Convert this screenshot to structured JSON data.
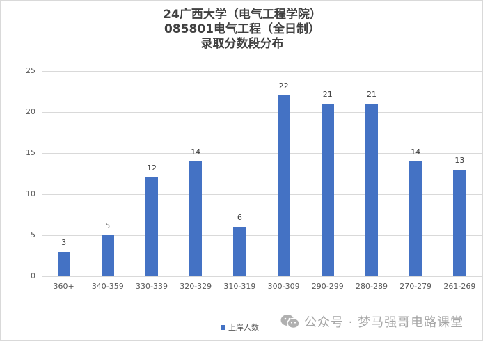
{
  "chart": {
    "title_lines": [
      "24广西大学（电气工程学院）",
      "085801电气工程（全日制）",
      "录取分数段分布"
    ],
    "bar_color": "#4472c4",
    "legend_label": "上岸人数",
    "watermark": "公众号 · 梦马强哥电路课堂",
    "watermark_icon": "wechat-icon"
  },
  "chart_data": {
    "type": "bar",
    "title": "24广西大学（电气工程学院） 085801电气工程（全日制） 录取分数段分布",
    "categories": [
      "360+",
      "340-359",
      "330-339",
      "320-329",
      "310-319",
      "300-309",
      "290-299",
      "280-289",
      "270-279",
      "261-269"
    ],
    "series": [
      {
        "name": "上岸人数",
        "values": [
          3,
          5,
          12,
          14,
          6,
          22,
          21,
          21,
          14,
          13
        ]
      }
    ],
    "xlabel": "",
    "ylabel": "",
    "ylim": [
      0,
      25
    ],
    "yticks": [
      0,
      5,
      10,
      15,
      20,
      25
    ],
    "grid": true,
    "legend_position": "bottom",
    "data_labels": true
  }
}
